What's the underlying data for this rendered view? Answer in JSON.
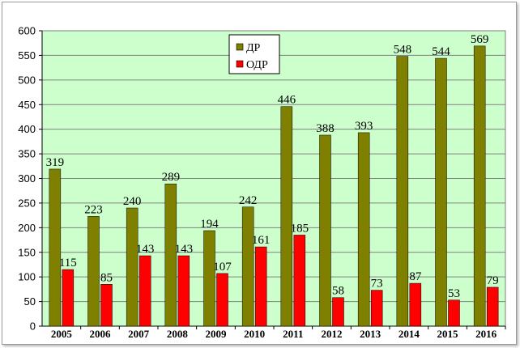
{
  "chart_data": {
    "type": "bar",
    "categories": [
      "2005",
      "2006",
      "2007",
      "2008",
      "2009",
      "2010",
      "2011",
      "2012",
      "2013",
      "2014",
      "2015",
      "2016"
    ],
    "series": [
      {
        "name": "ДР",
        "color": "#808000",
        "values": [
          319,
          223,
          240,
          289,
          194,
          242,
          446,
          388,
          393,
          548,
          544,
          569
        ]
      },
      {
        "name": "ОДР",
        "color": "#ff0000",
        "values": [
          115,
          85,
          143,
          143,
          107,
          161,
          185,
          58,
          73,
          87,
          53,
          79
        ]
      }
    ],
    "yticks": [
      "0",
      "50",
      "100",
      "150",
      "200",
      "250",
      "300",
      "350",
      "400",
      "450",
      "500",
      "550",
      "600"
    ],
    "ylim": [
      0,
      600
    ],
    "grid": true,
    "plot_background": "#ccffcc",
    "legend": {
      "placement": "top-center-left"
    }
  }
}
